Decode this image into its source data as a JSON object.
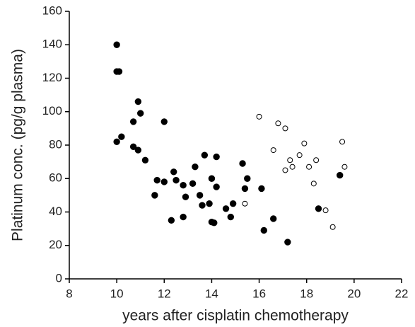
{
  "chart_data": {
    "type": "scatter",
    "xlabel": "years after cisplatin chemotherapy",
    "ylabel": "Platinum conc. (pg/g plasma)",
    "xlim": [
      8,
      22
    ],
    "xticks": [
      8,
      10,
      12,
      14,
      16,
      18,
      20,
      22
    ],
    "ylim": [
      0,
      160
    ],
    "yticks": [
      0,
      20,
      40,
      60,
      80,
      100,
      120,
      140,
      160
    ],
    "series": [
      {
        "color": "#000000",
        "marker": "filled",
        "x": [
          10.0,
          10.0,
          10.1,
          10.0,
          10.2,
          10.7,
          10.9,
          11.0,
          10.7,
          10.9,
          11.2,
          12.0,
          11.7,
          12.0,
          11.6,
          12.4,
          12.5,
          12.8,
          12.9,
          12.3,
          12.8,
          13.2,
          13.3,
          13.5,
          13.6,
          13.7,
          13.9,
          14.0,
          14.2,
          14.2,
          14.0,
          14.1,
          14.6,
          14.9,
          14.8,
          15.3,
          15.4,
          15.5,
          16.1,
          16.2,
          16.6,
          17.2,
          19.4,
          18.5
        ],
        "values": [
          140,
          124,
          124,
          82,
          85,
          94,
          106,
          99,
          79,
          77,
          71,
          94,
          59,
          58,
          50,
          64,
          59,
          56,
          49,
          35,
          37,
          57,
          67,
          50,
          44,
          74,
          45,
          60,
          73,
          55,
          34,
          33.5,
          42,
          45,
          37,
          69,
          54,
          60,
          54,
          29,
          36,
          22,
          62,
          42
        ]
      },
      {
        "color": "#000000",
        "marker": "open",
        "x": [
          15.4,
          16.0,
          16.6,
          16.8,
          17.1,
          17.1,
          17.3,
          17.4,
          17.7,
          17.9,
          18.1,
          18.4,
          18.3,
          18.8,
          19.1,
          19.5,
          19.6
        ],
        "values": [
          45,
          97,
          77,
          93,
          90,
          65,
          71,
          67,
          74,
          81,
          67,
          71,
          57,
          41,
          31,
          82,
          67
        ]
      }
    ]
  }
}
